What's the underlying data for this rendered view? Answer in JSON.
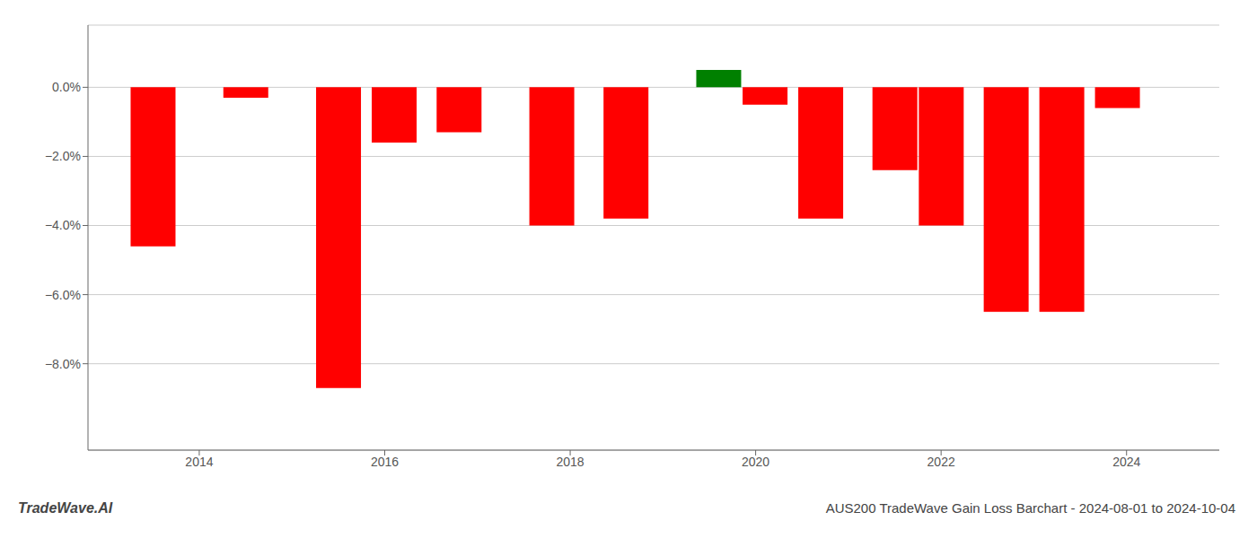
{
  "chart_data": {
    "type": "bar",
    "annotations": [
      "TradeWave.AI",
      "AUS200 TradeWave Gain Loss Barchart - 2024-08-01 to 2024-10-04"
    ],
    "x": [
      2013.5,
      2014.5,
      2015.5,
      2016.1,
      2016.8,
      2017.8,
      2018.6,
      2019.6,
      2020.1,
      2020.7,
      2021.5,
      2022.0,
      2022.7,
      2023.3,
      2023.9
    ],
    "values": [
      -0.046,
      -0.003,
      -0.087,
      -0.016,
      -0.013,
      -0.04,
      -0.038,
      0.005,
      -0.005,
      -0.038,
      -0.024,
      -0.04,
      -0.065,
      -0.065,
      -0.006
    ],
    "colors": [
      "#ff0000",
      "#ff0000",
      "#ff0000",
      "#ff0000",
      "#ff0000",
      "#ff0000",
      "#ff0000",
      "#008000",
      "#ff0000",
      "#ff0000",
      "#ff0000",
      "#ff0000",
      "#ff0000",
      "#ff0000",
      "#ff0000"
    ],
    "xlim": [
      2012.8,
      2025.0
    ],
    "xticks": [
      2014,
      2016,
      2018,
      2020,
      2022,
      2024
    ],
    "ylim": [
      -0.105,
      0.018
    ],
    "yticks": [
      {
        "value": 0.0,
        "label": "0.0%"
      },
      {
        "value": -0.02,
        "label": "−2.0%"
      },
      {
        "value": -0.04,
        "label": "−4.0%"
      },
      {
        "value": -0.06,
        "label": "−6.0%"
      },
      {
        "value": -0.08,
        "label": "−8.0%"
      }
    ],
    "grid": true
  }
}
